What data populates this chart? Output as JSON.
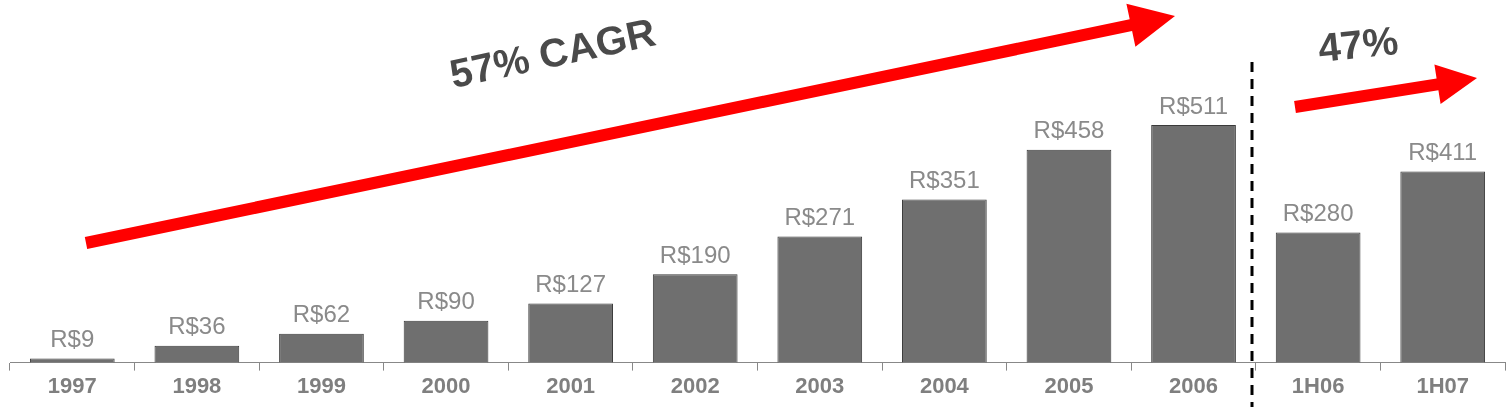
{
  "chart_data": {
    "type": "bar",
    "categories": [
      "1997",
      "1998",
      "1999",
      "2000",
      "2001",
      "2002",
      "2003",
      "2004",
      "2005",
      "2006",
      "1H06",
      "1H07"
    ],
    "values": [
      9,
      36,
      62,
      90,
      127,
      190,
      271,
      351,
      458,
      511,
      280,
      411
    ],
    "value_labels": [
      "R$9",
      "R$36",
      "R$62",
      "R$90",
      "R$127",
      "R$190",
      "R$271",
      "R$351",
      "R$458",
      "R$511",
      "R$280",
      "R$411"
    ],
    "color": "#6f6f6f",
    "annotations": [
      "57% CAGR",
      "47%"
    ],
    "grid": false,
    "legend": false
  }
}
